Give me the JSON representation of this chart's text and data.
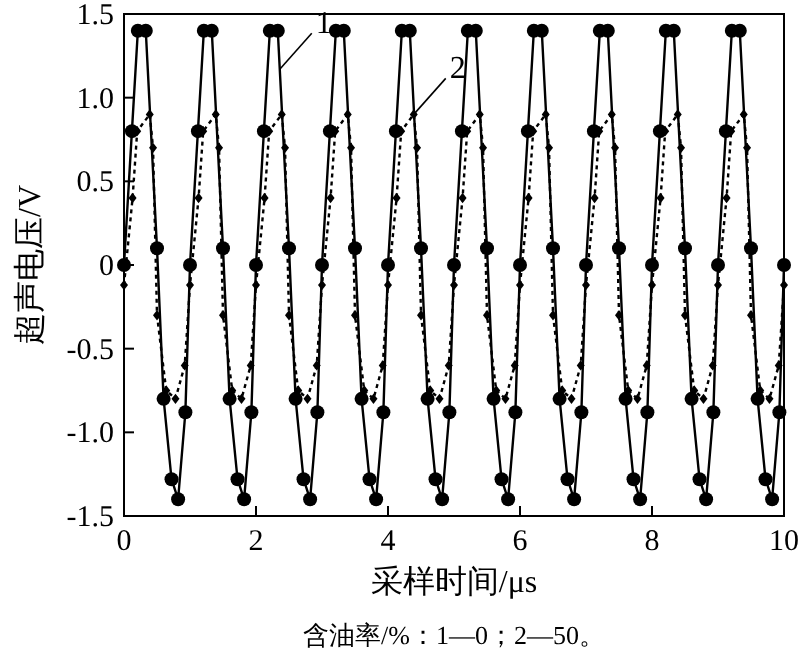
{
  "chart_data": {
    "type": "line",
    "xlabel": "采样时间/μs",
    "ylabel": "超声电压/V",
    "annotations": [
      {
        "text": "1",
        "x": 2.36,
        "y": 1.17
      },
      {
        "text": "2",
        "x": 4.39,
        "y": 0.9
      },
      "含油率/%：1—0；2—50。"
    ],
    "xlim": [
      0,
      10
    ],
    "xticks": [
      0,
      2,
      4,
      6,
      8,
      10
    ],
    "ylim": [
      -1.5,
      1.5
    ],
    "yticks": [
      {
        "value": -1.5,
        "label": "-1.5"
      },
      {
        "value": -1,
        "label": "-1.0"
      },
      {
        "value": -0.5,
        "label": "-0.5"
      },
      0,
      {
        "value": 0.5,
        "label": "0.5"
      },
      {
        "value": 1,
        "label": "1.0"
      },
      {
        "value": 1.5,
        "label": "1.5"
      }
    ],
    "grid": false,
    "series": [
      {
        "color": "#000000",
        "marker": "circle",
        "line_style": "solid",
        "x": [
          0,
          0.12,
          0.21,
          0.33,
          0.5,
          0.6,
          0.72,
          0.82,
          0.93,
          1,
          1.12,
          1.21,
          1.33,
          1.5,
          1.6,
          1.72,
          1.82,
          1.93,
          2,
          2.12,
          2.21,
          2.33,
          2.5,
          2.6,
          2.72,
          2.82,
          2.93,
          3,
          3.12,
          3.21,
          3.33,
          3.5,
          3.6,
          3.72,
          3.82,
          3.93,
          4,
          4.12,
          4.21,
          4.33,
          4.5,
          4.6,
          4.72,
          4.82,
          4.93,
          5,
          5.12,
          5.21,
          5.33,
          5.5,
          5.6,
          5.72,
          5.82,
          5.93,
          6,
          6.12,
          6.21,
          6.33,
          6.5,
          6.6,
          6.72,
          6.82,
          6.93,
          7,
          7.12,
          7.21,
          7.33,
          7.5,
          7.6,
          7.72,
          7.82,
          7.93,
          8,
          8.12,
          8.21,
          8.33,
          8.5,
          8.6,
          8.72,
          8.82,
          8.93,
          9,
          9.12,
          9.21,
          9.33,
          9.5,
          9.6,
          9.72,
          9.82,
          9.93,
          10
        ],
        "values": [
          0,
          0.8,
          1.4,
          1.4,
          0.1,
          -0.8,
          -1.28,
          -1.4,
          -0.88,
          0,
          0.8,
          1.4,
          1.4,
          0.1,
          -0.8,
          -1.28,
          -1.4,
          -0.88,
          0,
          0.8,
          1.4,
          1.4,
          0.1,
          -0.8,
          -1.28,
          -1.4,
          -0.88,
          0,
          0.8,
          1.4,
          1.4,
          0.1,
          -0.8,
          -1.28,
          -1.4,
          -0.88,
          0,
          0.8,
          1.4,
          1.4,
          0.1,
          -0.8,
          -1.28,
          -1.4,
          -0.88,
          0,
          0.8,
          1.4,
          1.4,
          0.1,
          -0.8,
          -1.28,
          -1.4,
          -0.88,
          0,
          0.8,
          1.4,
          1.4,
          0.1,
          -0.8,
          -1.28,
          -1.4,
          -0.88,
          0,
          0.8,
          1.4,
          1.4,
          0.1,
          -0.8,
          -1.28,
          -1.4,
          -0.88,
          0,
          0.8,
          1.4,
          1.4,
          0.1,
          -0.8,
          -1.28,
          -1.4,
          -0.88,
          0,
          0.8,
          1.4,
          1.4,
          0.1,
          -0.8,
          -1.28,
          -1.4,
          -0.88,
          0
        ]
      },
      {
        "color": "#000000",
        "marker": "diamond",
        "line_style": "dotted",
        "x": [
          0,
          0.13,
          0.2,
          0.39,
          0.44,
          0.5,
          0.64,
          0.78,
          0.92,
          1,
          1.13,
          1.2,
          1.39,
          1.44,
          1.5,
          1.64,
          1.78,
          1.92,
          2,
          2.13,
          2.2,
          2.39,
          2.44,
          2.5,
          2.64,
          2.78,
          2.92,
          3,
          3.13,
          3.2,
          3.39,
          3.44,
          3.5,
          3.64,
          3.78,
          3.92,
          4,
          4.13,
          4.2,
          4.39,
          4.44,
          4.5,
          4.64,
          4.78,
          4.92,
          5,
          5.13,
          5.2,
          5.39,
          5.44,
          5.5,
          5.64,
          5.78,
          5.92,
          6,
          6.13,
          6.2,
          6.39,
          6.44,
          6.5,
          6.64,
          6.78,
          6.92,
          7,
          7.13,
          7.2,
          7.39,
          7.44,
          7.5,
          7.64,
          7.78,
          7.92,
          8,
          8.13,
          8.2,
          8.39,
          8.44,
          8.5,
          8.64,
          8.78,
          8.92,
          9,
          9.13,
          9.2,
          9.39,
          9.44,
          9.5,
          9.64,
          9.78,
          9.92,
          10
        ],
        "values": [
          -0.12,
          0.4,
          0.8,
          0.9,
          0.7,
          -0.3,
          -0.75,
          -0.8,
          -0.6,
          -0.12,
          0.4,
          0.8,
          0.9,
          0.7,
          -0.3,
          -0.75,
          -0.8,
          -0.6,
          -0.12,
          0.4,
          0.8,
          0.9,
          0.7,
          -0.3,
          -0.75,
          -0.8,
          -0.6,
          -0.12,
          0.4,
          0.8,
          0.9,
          0.7,
          -0.3,
          -0.75,
          -0.8,
          -0.6,
          -0.12,
          0.4,
          0.8,
          0.9,
          0.7,
          -0.3,
          -0.75,
          -0.8,
          -0.6,
          -0.12,
          0.4,
          0.8,
          0.9,
          0.7,
          -0.3,
          -0.75,
          -0.8,
          -0.6,
          -0.12,
          0.4,
          0.8,
          0.9,
          0.7,
          -0.3,
          -0.75,
          -0.8,
          -0.6,
          -0.12,
          0.4,
          0.8,
          0.9,
          0.7,
          -0.3,
          -0.75,
          -0.8,
          -0.6,
          -0.12,
          0.4,
          0.8,
          0.9,
          0.7,
          -0.3,
          -0.75,
          -0.8,
          -0.6,
          -0.12,
          0.4,
          0.8,
          0.9,
          0.7,
          -0.3,
          -0.75,
          -0.8,
          -0.6,
          -0.12
        ]
      }
    ]
  }
}
